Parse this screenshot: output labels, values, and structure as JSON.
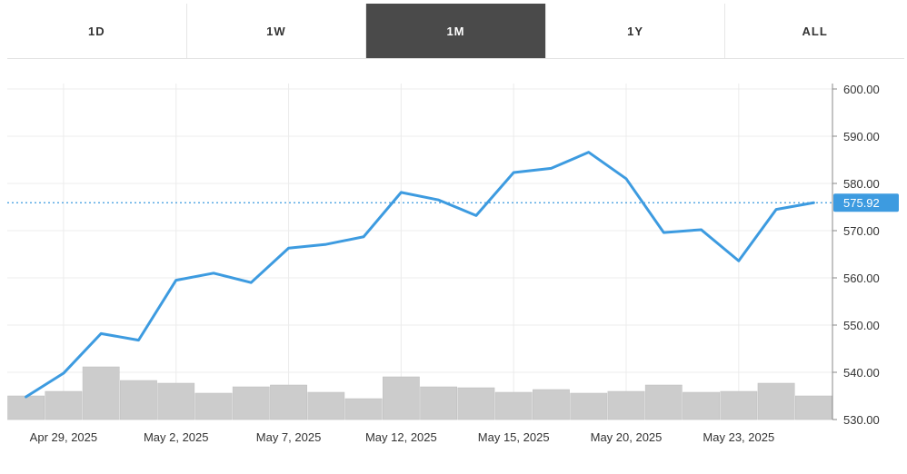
{
  "range_tabs": [
    {
      "label": "1D",
      "active": false
    },
    {
      "label": "1W",
      "active": false
    },
    {
      "label": "1M",
      "active": true
    },
    {
      "label": "1Y",
      "active": false
    },
    {
      "label": "ALL",
      "active": false
    }
  ],
  "colors": {
    "line": "#3d9be0",
    "last_price_badge": "#3d9be0",
    "volume_bar": "#cccccc",
    "active_tab": "#4a4a4a"
  },
  "chart_data": {
    "type": "line",
    "ylim": [
      530,
      600
    ],
    "y_ticks": [
      "600.00",
      "590.00",
      "580.00",
      "570.00",
      "560.00",
      "550.00",
      "540.00",
      "530.00"
    ],
    "x_tick_labels": [
      {
        "label": "Apr 29, 2025",
        "index": 1
      },
      {
        "label": "May 2, 2025",
        "index": 4
      },
      {
        "label": "May 7, 2025",
        "index": 7
      },
      {
        "label": "May 12, 2025",
        "index": 10
      },
      {
        "label": "May 15, 2025",
        "index": 13
      },
      {
        "label": "May 20, 2025",
        "index": 16
      },
      {
        "label": "May 23, 2025",
        "index": 19
      }
    ],
    "series": [
      {
        "values": [
          534.8,
          539.8,
          548.2,
          546.8,
          559.5,
          561.0,
          559.0,
          566.3,
          567.1,
          568.7,
          578.1,
          576.5,
          573.2,
          582.3,
          583.2,
          586.6,
          581.0,
          569.6,
          570.2,
          563.6,
          574.5,
          575.92
        ]
      }
    ],
    "last_price": "575.92",
    "volume_relative": [
      0.26,
      0.31,
      0.58,
      0.43,
      0.4,
      0.29,
      0.36,
      0.38,
      0.3,
      0.23,
      0.47,
      0.36,
      0.35,
      0.3,
      0.33,
      0.29,
      0.31,
      0.38,
      0.3,
      0.31,
      0.4,
      0.26
    ],
    "grid": true,
    "legend": "none"
  }
}
